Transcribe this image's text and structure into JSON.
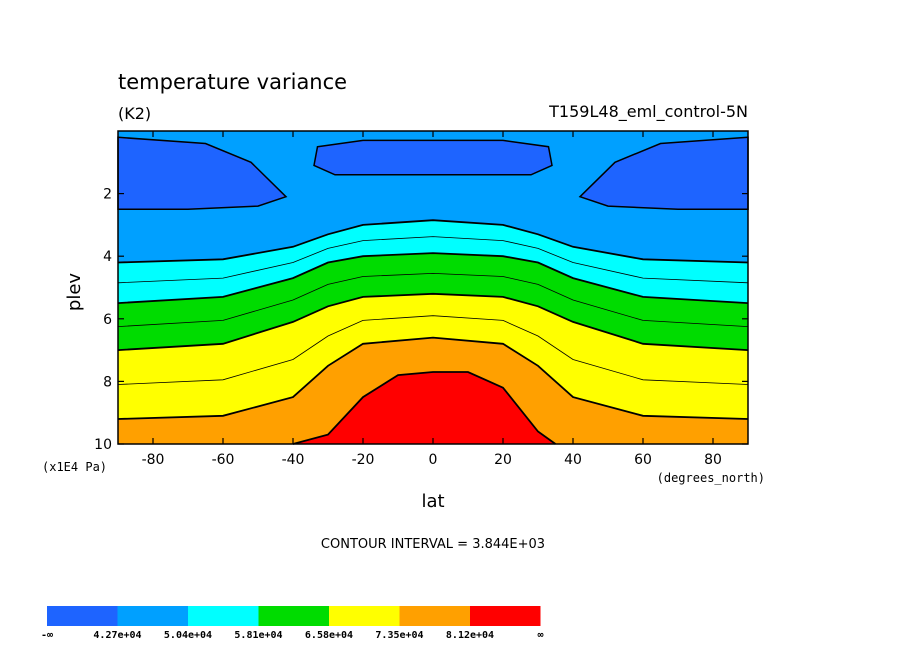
{
  "chart_data": {
    "type": "contour",
    "title": "temperature variance",
    "units": "(K2)",
    "case_label": "T159L48_eml_control-5N",
    "xlabel": "lat",
    "x_units": "(degrees_north)",
    "ylabel": "plev",
    "y_units": "(x1E4 Pa)",
    "xlim": [
      -90,
      90
    ],
    "ylim": [
      0,
      10
    ],
    "y_inverted": true,
    "x_ticks": [
      -80,
      -60,
      -40,
      -20,
      0,
      20,
      40,
      60,
      80
    ],
    "x_tick_labels": [
      "-80",
      "-60",
      "-40",
      "-20",
      "0",
      "20",
      "40",
      "60",
      "80"
    ],
    "y_ticks": [
      2,
      4,
      6,
      8,
      10
    ],
    "y_tick_labels": [
      "2",
      "4",
      "6",
      "8",
      "10"
    ],
    "contour_interval_text": "CONTOUR INTERVAL = 3.844E+03",
    "contour_interval": 3844,
    "levels": [
      42700,
      50400,
      58100,
      65800,
      73500,
      81200
    ],
    "colorbar": {
      "colors": [
        "#1e64ff",
        "#00a0ff",
        "#00ffff",
        "#00dc00",
        "#ffff00",
        "#ffa000",
        "#ff0000"
      ],
      "labels": [
        "-∞",
        "4.27e+04",
        "5.04e+04",
        "5.81e+04",
        "6.58e+04",
        "7.35e+04",
        "8.12e+04",
        "∞"
      ]
    },
    "boundaries": [
      {
        "level": 42700,
        "shape": "sine-wave",
        "points": [
          [
            -90,
            2.5
          ],
          [
            -50,
            2.6
          ],
          [
            -40,
            2.1
          ],
          [
            -30,
            1.3
          ],
          [
            -20,
            1.3
          ],
          [
            0,
            1.3
          ],
          [
            20,
            1.3
          ],
          [
            30,
            1.3
          ],
          [
            40,
            2.1
          ],
          [
            50,
            2.6
          ],
          [
            90,
            2.5
          ]
        ]
      },
      {
        "level": 50400,
        "points": [
          [
            -90,
            4.2
          ],
          [
            -60,
            4.1
          ],
          [
            -40,
            3.7
          ],
          [
            -30,
            3.3
          ],
          [
            -20,
            3.0
          ],
          [
            0,
            2.85
          ],
          [
            20,
            3.0
          ],
          [
            30,
            3.3
          ],
          [
            40,
            3.7
          ],
          [
            60,
            4.1
          ],
          [
            90,
            4.2
          ]
        ]
      },
      {
        "level": 58100,
        "points": [
          [
            -90,
            5.5
          ],
          [
            -60,
            5.3
          ],
          [
            -40,
            4.7
          ],
          [
            -30,
            4.2
          ],
          [
            -20,
            4.0
          ],
          [
            0,
            3.9
          ],
          [
            20,
            4.0
          ],
          [
            30,
            4.2
          ],
          [
            40,
            4.7
          ],
          [
            60,
            5.3
          ],
          [
            90,
            5.5
          ]
        ]
      },
      {
        "level": 65800,
        "points": [
          [
            -90,
            7.0
          ],
          [
            -60,
            6.8
          ],
          [
            -40,
            6.1
          ],
          [
            -30,
            5.6
          ],
          [
            -20,
            5.3
          ],
          [
            0,
            5.2
          ],
          [
            20,
            5.3
          ],
          [
            30,
            5.6
          ],
          [
            40,
            6.1
          ],
          [
            60,
            6.8
          ],
          [
            90,
            7.0
          ]
        ]
      },
      {
        "level": 73500,
        "points": [
          [
            -90,
            9.2
          ],
          [
            -60,
            9.1
          ],
          [
            -40,
            8.5
          ],
          [
            -30,
            7.5
          ],
          [
            -20,
            6.8
          ],
          [
            0,
            6.6
          ],
          [
            20,
            6.8
          ],
          [
            30,
            7.5
          ],
          [
            40,
            8.5
          ],
          [
            60,
            9.1
          ],
          [
            90,
            9.2
          ]
        ]
      },
      {
        "level": 81200,
        "points": [
          [
            -40,
            10.0
          ],
          [
            -30,
            9.7
          ],
          [
            -20,
            8.5
          ],
          [
            -10,
            7.8
          ],
          [
            0,
            7.7
          ],
          [
            10,
            7.7
          ],
          [
            20,
            8.2
          ],
          [
            30,
            9.6
          ],
          [
            35,
            10.0
          ]
        ]
      }
    ]
  }
}
